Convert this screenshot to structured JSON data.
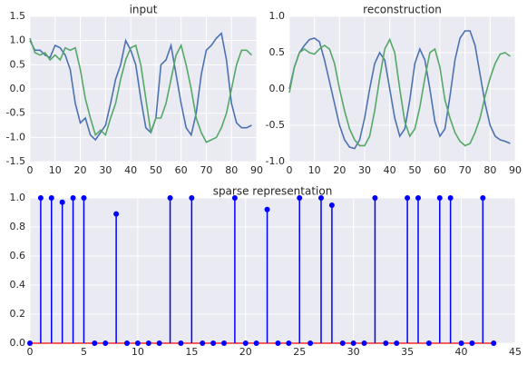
{
  "chart_data": [
    {
      "type": "line",
      "title": "input",
      "x": [
        0,
        2,
        4,
        6,
        8,
        10,
        12,
        14,
        16,
        18,
        20,
        22,
        24,
        26,
        28,
        30,
        32,
        34,
        36,
        38,
        40,
        42,
        44,
        46,
        48,
        50,
        52,
        54,
        56,
        58,
        60,
        62,
        64,
        66,
        68,
        70,
        72,
        74,
        76,
        78,
        80,
        82,
        84,
        86,
        88
      ],
      "series": [
        {
          "color": "#4c72b0",
          "values": [
            1.0,
            0.8,
            0.8,
            0.7,
            0.65,
            0.9,
            0.85,
            0.7,
            0.4,
            -0.3,
            -0.7,
            -0.6,
            -0.95,
            -1.05,
            -0.9,
            -0.75,
            -0.3,
            0.2,
            0.5,
            1.0,
            0.8,
            0.5,
            -0.2,
            -0.8,
            -0.9,
            -0.6,
            0.5,
            0.6,
            0.9,
            0.3,
            -0.3,
            -0.8,
            -0.95,
            -0.5,
            0.3,
            0.8,
            0.9,
            1.05,
            1.15,
            0.6,
            -0.3,
            -0.7,
            -0.8,
            -0.8,
            -0.75
          ]
        },
        {
          "color": "#55a868",
          "values": [
            1.05,
            0.75,
            0.7,
            0.75,
            0.6,
            0.7,
            0.6,
            0.85,
            0.8,
            0.85,
            0.4,
            -0.2,
            -0.6,
            -0.95,
            -0.85,
            -0.95,
            -0.6,
            -0.3,
            0.2,
            0.6,
            0.85,
            0.9,
            0.5,
            -0.2,
            -0.9,
            -0.6,
            -0.6,
            -0.3,
            0.2,
            0.7,
            0.9,
            0.5,
            0.0,
            -0.6,
            -0.9,
            -1.1,
            -1.05,
            -1.0,
            -0.8,
            -0.5,
            0.0,
            0.5,
            0.8,
            0.8,
            0.7
          ]
        }
      ],
      "xlim": [
        0,
        90
      ],
      "xticks": [
        0,
        10,
        20,
        30,
        40,
        50,
        60,
        70,
        80,
        90
      ],
      "ylim": [
        -1.5,
        1.5
      ],
      "yticks": [
        {
          "value": -1.5,
          "label": "-1.5"
        },
        {
          "value": -1.0,
          "label": "-1.0"
        },
        {
          "value": -0.5,
          "label": "-0.5"
        },
        {
          "value": 0,
          "label": "0.0"
        },
        {
          "value": 0.5,
          "label": "0.5"
        },
        {
          "value": 1.0,
          "label": "1.0"
        },
        {
          "value": 1.5,
          "label": "1.5"
        }
      ],
      "grid": true
    },
    {
      "type": "line",
      "title": "reconstruction",
      "x": [
        0,
        2,
        4,
        6,
        8,
        10,
        12,
        14,
        16,
        18,
        20,
        22,
        24,
        26,
        28,
        30,
        32,
        34,
        36,
        38,
        40,
        42,
        44,
        46,
        48,
        50,
        52,
        54,
        56,
        58,
        60,
        62,
        64,
        66,
        68,
        70,
        72,
        74,
        76,
        78,
        80,
        82,
        84,
        86,
        88
      ],
      "series": [
        {
          "color": "#4c72b0",
          "values": [
            0.0,
            0.3,
            0.5,
            0.6,
            0.68,
            0.7,
            0.65,
            0.4,
            0.1,
            -0.2,
            -0.5,
            -0.7,
            -0.8,
            -0.82,
            -0.7,
            -0.4,
            0.0,
            0.35,
            0.5,
            0.4,
            0.0,
            -0.4,
            -0.65,
            -0.55,
            -0.15,
            0.35,
            0.55,
            0.4,
            0.0,
            -0.45,
            -0.65,
            -0.55,
            -0.1,
            0.4,
            0.7,
            0.8,
            0.8,
            0.6,
            0.2,
            -0.2,
            -0.5,
            -0.65,
            -0.7,
            -0.72,
            -0.75
          ]
        },
        {
          "color": "#55a868",
          "values": [
            -0.05,
            0.3,
            0.5,
            0.55,
            0.5,
            0.48,
            0.55,
            0.6,
            0.55,
            0.35,
            0.0,
            -0.3,
            -0.55,
            -0.7,
            -0.78,
            -0.78,
            -0.65,
            -0.3,
            0.15,
            0.55,
            0.68,
            0.5,
            0.0,
            -0.45,
            -0.65,
            -0.55,
            -0.25,
            0.15,
            0.5,
            0.55,
            0.3,
            -0.15,
            -0.4,
            -0.6,
            -0.72,
            -0.78,
            -0.75,
            -0.6,
            -0.4,
            -0.1,
            0.15,
            0.35,
            0.48,
            0.5,
            0.45
          ]
        }
      ],
      "xlim": [
        0,
        90
      ],
      "xticks": [
        0,
        10,
        20,
        30,
        40,
        50,
        60,
        70,
        80,
        90
      ],
      "ylim": [
        -1.0,
        1.0
      ],
      "yticks": [
        {
          "value": -1.0,
          "label": "-1.0"
        },
        {
          "value": -0.5,
          "label": "-0.5"
        },
        {
          "value": 0,
          "label": "0.0"
        },
        {
          "value": 0.5,
          "label": "0.5"
        },
        {
          "value": 1.0,
          "label": "1.0"
        }
      ],
      "grid": true
    },
    {
      "type": "stem",
      "title": "sparse representation",
      "values": [
        0,
        1.0,
        1.0,
        0.97,
        1.0,
        1.0,
        0,
        0,
        0.89,
        0,
        0,
        0,
        0,
        1.0,
        0,
        1.0,
        0,
        0,
        0,
        1.0,
        0,
        0,
        0.92,
        0,
        0,
        1.0,
        0,
        1.0,
        0.95,
        0,
        0,
        0,
        1.0,
        0,
        0,
        1.0,
        1.0,
        0,
        1.0,
        1.0,
        0,
        0,
        1.0,
        0
      ],
      "color": "#0000ff",
      "baseline_color": "#ff0000",
      "xlim": [
        0,
        45
      ],
      "xticks": [
        0,
        5,
        10,
        15,
        20,
        25,
        30,
        35,
        40,
        45
      ],
      "ylim": [
        0,
        1.0
      ],
      "yticks": [
        {
          "value": 0,
          "label": "0.0"
        },
        {
          "value": 0.2,
          "label": "0.2"
        },
        {
          "value": 0.4,
          "label": "0.4"
        },
        {
          "value": 0.6,
          "label": "0.6"
        },
        {
          "value": 0.8,
          "label": "0.8"
        },
        {
          "value": 1.0,
          "label": "1.0"
        }
      ],
      "grid": true
    }
  ]
}
